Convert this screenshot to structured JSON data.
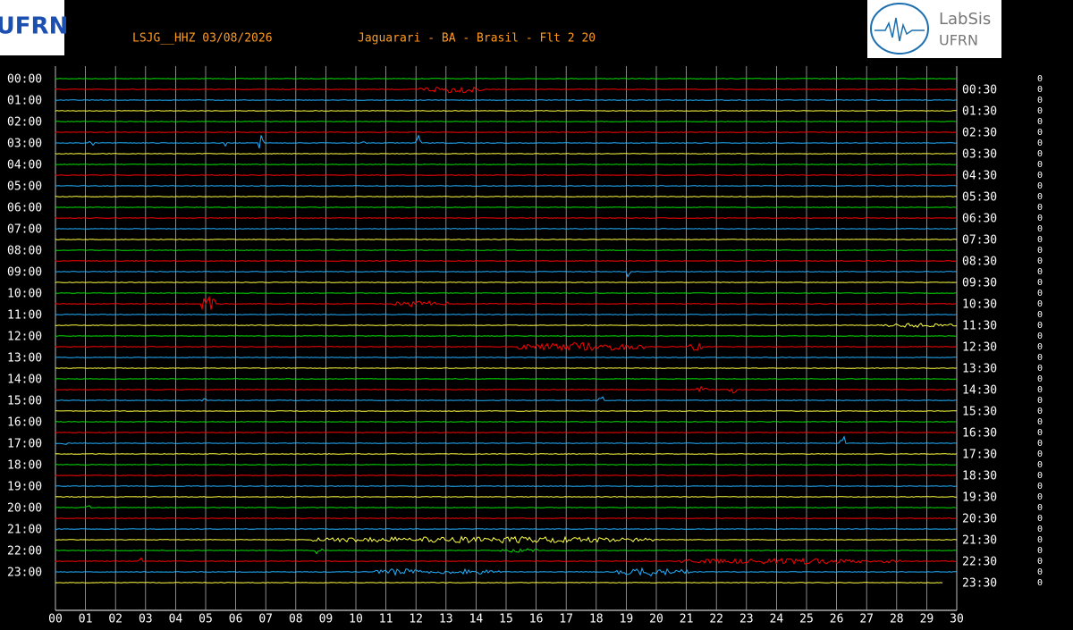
{
  "header": {
    "station": "LSJG__HHZ 03/08/2026",
    "location": "Jaguarari - BA - Brasil - Flt 2 20",
    "logo_left": "UFRN",
    "logo_right_top": "LabSis",
    "logo_right_bottom": "UFRN"
  },
  "left_labels": [
    "00:00",
    "01:00",
    "02:00",
    "03:00",
    "04:00",
    "05:00",
    "06:00",
    "07:00",
    "08:00",
    "09:00",
    "10:00",
    "11:00",
    "12:00",
    "13:00",
    "14:00",
    "15:00",
    "16:00",
    "17:00",
    "18:00",
    "19:00",
    "20:00",
    "21:00",
    "22:00",
    "23:00"
  ],
  "right_labels": [
    "00:30",
    "01:30",
    "02:30",
    "03:30",
    "04:30",
    "05:30",
    "06:30",
    "07:30",
    "08:30",
    "09:30",
    "10:30",
    "11:30",
    "12:30",
    "13:30",
    "14:30",
    "15:30",
    "16:30",
    "17:30",
    "18:30",
    "19:30",
    "20:30",
    "21:30",
    "22:30",
    "23:30"
  ],
  "x_labels": [
    "00",
    "01",
    "02",
    "03",
    "04",
    "05",
    "06",
    "07",
    "08",
    "09",
    "10",
    "11",
    "12",
    "13",
    "14",
    "15",
    "16",
    "17",
    "18",
    "19",
    "20",
    "21",
    "22",
    "23",
    "24",
    "25",
    "26",
    "27",
    "28",
    "29",
    "30"
  ],
  "right_counts": [
    0,
    0,
    0,
    0,
    0,
    0,
    0,
    0,
    0,
    0,
    0,
    0,
    0,
    0,
    0,
    0,
    0,
    0,
    0,
    0,
    0,
    0,
    0,
    0,
    0,
    0,
    0,
    0,
    0,
    0,
    0,
    0,
    0,
    0,
    0,
    0,
    0,
    0,
    0,
    0,
    0,
    0,
    0,
    0,
    0,
    0,
    0,
    0
  ],
  "trace_colors": [
    "#00e000",
    "#ff0000",
    "#20b0ff",
    "#ffff40"
  ]
}
